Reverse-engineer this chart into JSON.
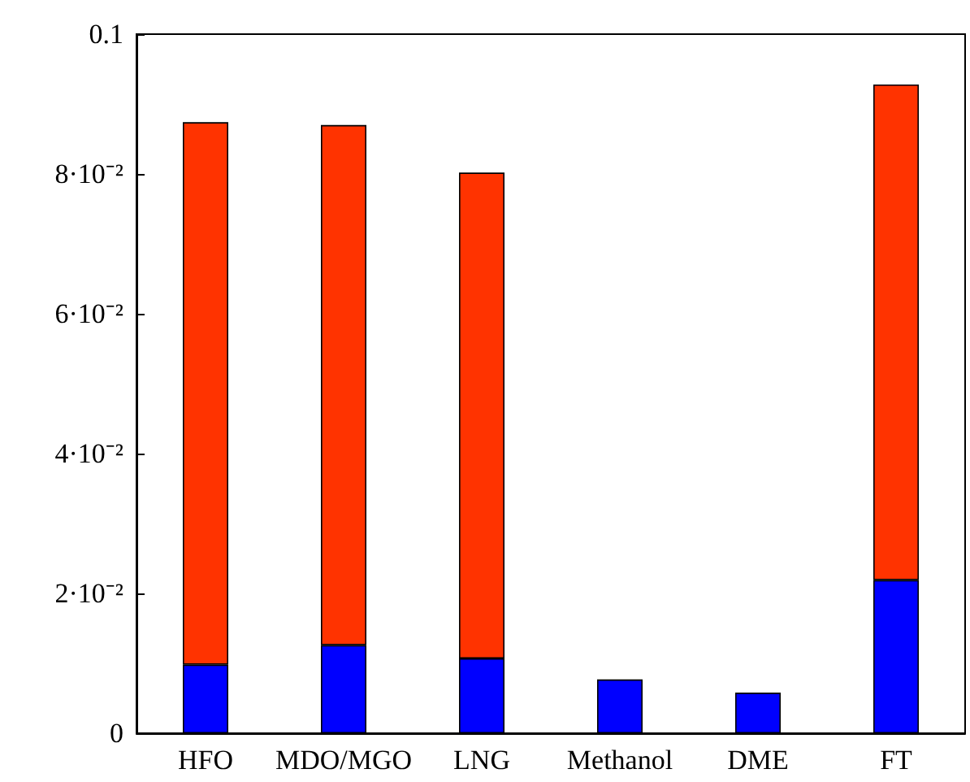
{
  "chart_data": {
    "type": "bar",
    "stacked": true,
    "categories": [
      "HFO",
      "MDO/MGO",
      "LNG",
      "Methanol",
      "DME",
      "FT"
    ],
    "series": [
      {
        "color": "#0000ff",
        "values": [
          0.0098,
          0.0126,
          0.0107,
          0.0077,
          0.0058,
          0.0219
        ]
      },
      {
        "color": "#ff3300",
        "values": [
          0.0776,
          0.0744,
          0.0695,
          null,
          null,
          0.0709
        ]
      }
    ],
    "ylim": [
      0,
      0.1
    ],
    "yticks": [
      0,
      {
        "value": 0.02,
        "label": "2·10⁻²"
      },
      {
        "value": 0.04,
        "label": "4·10⁻²"
      },
      {
        "value": 0.06,
        "label": "6·10⁻²"
      },
      {
        "value": 0.08,
        "label": "8·10⁻²"
      },
      0.1
    ],
    "grid": false
  }
}
